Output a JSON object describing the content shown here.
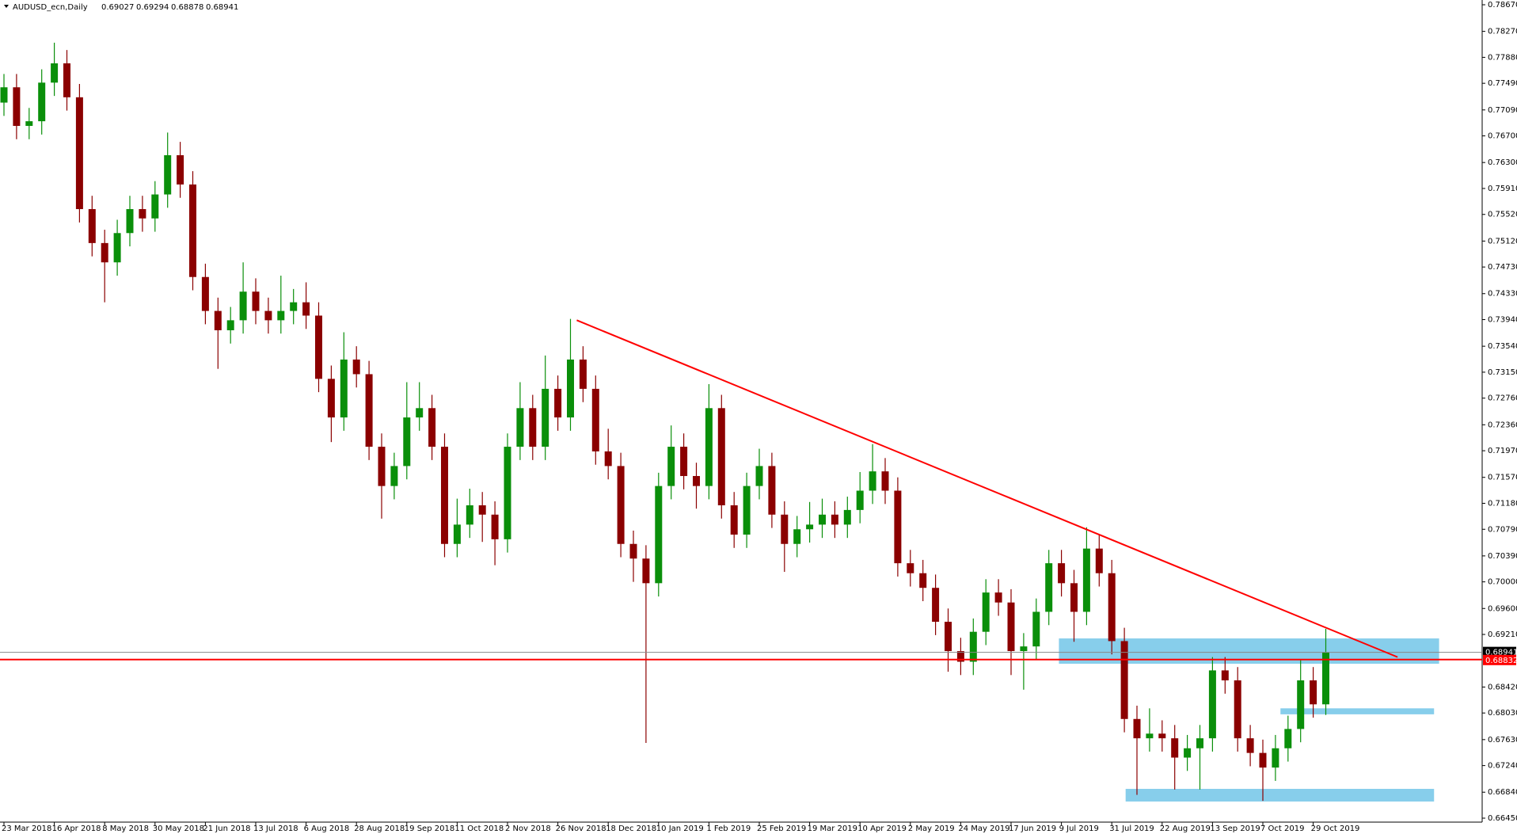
{
  "chart_data": {
    "type": "candlestick",
    "header": {
      "symbol": "AUDUSD_ecn,Daily",
      "ohlc": [
        0.69027,
        0.69294,
        0.68878,
        0.68941
      ]
    },
    "up_color": "#0a8f0a",
    "down_color": "#8b0000",
    "categories": [
      "23 Mar 2018",
      null,
      null,
      null,
      "16 Apr 2018",
      null,
      null,
      null,
      "8 May 2018",
      null,
      null,
      null,
      "30 May 2018",
      null,
      null,
      null,
      "21 Jun 2018",
      null,
      null,
      null,
      "13 Jul 2018",
      null,
      null,
      null,
      "6 Aug 2018",
      null,
      null,
      null,
      "28 Aug 2018",
      null,
      null,
      null,
      "19 Sep 2018",
      null,
      null,
      null,
      "11 Oct 2018",
      null,
      null,
      null,
      "2 Nov 2018",
      null,
      null,
      null,
      "26 Nov 2018",
      null,
      null,
      null,
      "18 Dec 2018",
      null,
      null,
      null,
      "10 Jan 2019",
      null,
      null,
      null,
      "1 Feb 2019",
      null,
      null,
      null,
      "25 Feb 2019",
      null,
      null,
      null,
      "19 Mar 2019",
      null,
      null,
      null,
      "10 Apr 2019",
      null,
      null,
      null,
      "2 May 2019",
      null,
      null,
      null,
      "24 May 2019",
      null,
      null,
      null,
      "17 Jun 2019",
      null,
      null,
      null,
      "9 Jul 2019",
      null,
      null,
      null,
      "31 Jul 2019",
      null,
      null,
      null,
      "22 Aug 2019",
      null,
      null,
      null,
      "13 Sep 2019",
      null,
      null,
      null,
      "7 Oct 2019",
      null,
      null,
      null,
      "29 Oct 2019",
      null
    ],
    "open": [
      0.772,
      0.7743,
      0.7685,
      0.7692,
      0.775,
      0.7779,
      0.7728,
      0.756,
      0.7509,
      0.748,
      0.7524,
      0.756,
      0.7546,
      0.7582,
      0.7641,
      0.7597,
      0.7458,
      0.7407,
      0.7378,
      0.7393,
      0.7436,
      0.7407,
      0.7393,
      0.7407,
      0.742,
      0.74,
      0.7305,
      0.7247,
      0.7334,
      0.7312,
      0.7203,
      0.7144,
      0.7174,
      0.7247,
      0.7261,
      0.7203,
      0.7057,
      0.7086,
      0.7115,
      0.7101,
      0.7064,
      0.7203,
      0.7261,
      0.7203,
      0.729,
      0.7247,
      0.7334,
      0.729,
      0.7196,
      0.7174,
      0.7057,
      0.7035,
      0.6998,
      0.7144,
      0.7203,
      0.7159,
      0.7144,
      0.7261,
      0.7115,
      0.7071,
      0.7144,
      0.7174,
      0.7101,
      0.7057,
      0.7079,
      0.7086,
      0.7101,
      0.7086,
      0.7108,
      0.7137,
      0.7166,
      0.7137,
      0.7028,
      0.7013,
      0.6991,
      0.694,
      0.6896,
      0.688,
      0.6925,
      0.6984,
      0.6969,
      0.6896,
      0.6903,
      0.6955,
      0.7028,
      0.6998,
      0.6955,
      0.705,
      0.7013,
      0.6911,
      0.6794,
      0.6765,
      0.6772,
      0.6765,
      0.6736,
      0.675,
      0.6765,
      0.6867,
      0.6852,
      0.6765,
      0.6743,
      0.6721,
      0.675,
      0.6779,
      0.6852,
      0.6816
    ],
    "high": [
      0.7763,
      0.7763,
      0.7712,
      0.777,
      0.781,
      0.7799,
      0.7748,
      0.758,
      0.7529,
      0.7544,
      0.758,
      0.758,
      0.7602,
      0.7675,
      0.7661,
      0.7617,
      0.7478,
      0.7427,
      0.7413,
      0.748,
      0.7456,
      0.7427,
      0.746,
      0.744,
      0.745,
      0.742,
      0.7325,
      0.7375,
      0.7354,
      0.7332,
      0.7223,
      0.7194,
      0.73,
      0.73,
      0.7281,
      0.7223,
      0.7125,
      0.714,
      0.7135,
      0.7121,
      0.7223,
      0.73,
      0.7281,
      0.734,
      0.731,
      0.7395,
      0.7354,
      0.731,
      0.723,
      0.7194,
      0.7077,
      0.7055,
      0.7164,
      0.7235,
      0.7223,
      0.7179,
      0.7297,
      0.7281,
      0.7135,
      0.7164,
      0.72,
      0.7194,
      0.7121,
      0.7099,
      0.712,
      0.7125,
      0.7121,
      0.7128,
      0.7165,
      0.7207,
      0.7186,
      0.7157,
      0.7048,
      0.7033,
      0.7011,
      0.696,
      0.6916,
      0.6945,
      0.7004,
      0.7004,
      0.6989,
      0.6923,
      0.6975,
      0.7048,
      0.7048,
      0.7018,
      0.7082,
      0.707,
      0.7033,
      0.6931,
      0.6814,
      0.681,
      0.6792,
      0.6785,
      0.677,
      0.6785,
      0.6887,
      0.6887,
      0.6872,
      0.6785,
      0.6763,
      0.677,
      0.6799,
      0.6883,
      0.6872,
      0.69294
    ],
    "low": [
      0.77,
      0.7665,
      0.7665,
      0.7672,
      0.773,
      0.7708,
      0.754,
      0.7489,
      0.742,
      0.746,
      0.7504,
      0.7526,
      0.7526,
      0.7562,
      0.7577,
      0.7438,
      0.7387,
      0.732,
      0.7358,
      0.7373,
      0.7387,
      0.7373,
      0.7373,
      0.7387,
      0.738,
      0.7285,
      0.721,
      0.7227,
      0.7292,
      0.7183,
      0.7095,
      0.7124,
      0.7154,
      0.7227,
      0.7183,
      0.7037,
      0.7037,
      0.7066,
      0.706,
      0.7025,
      0.7044,
      0.7183,
      0.7183,
      0.7183,
      0.7227,
      0.7227,
      0.727,
      0.7176,
      0.7154,
      0.7037,
      0.7,
      0.6758,
      0.6978,
      0.7124,
      0.7139,
      0.711,
      0.7124,
      0.7095,
      0.7051,
      0.7051,
      0.7124,
      0.7081,
      0.7015,
      0.7037,
      0.7059,
      0.7066,
      0.7066,
      0.7066,
      0.7088,
      0.7117,
      0.7117,
      0.7008,
      0.6993,
      0.6971,
      0.692,
      0.6865,
      0.686,
      0.686,
      0.6905,
      0.6949,
      0.686,
      0.6838,
      0.6883,
      0.6935,
      0.6978,
      0.691,
      0.6935,
      0.6993,
      0.6891,
      0.6774,
      0.668,
      0.6745,
      0.6745,
      0.6688,
      0.6716,
      0.6688,
      0.6745,
      0.6832,
      0.6745,
      0.6723,
      0.6671,
      0.6701,
      0.673,
      0.6759,
      0.6796,
      0.68
    ],
    "close": [
      0.7743,
      0.7685,
      0.7692,
      0.775,
      0.7779,
      0.7728,
      0.756,
      0.7509,
      0.748,
      0.7524,
      0.756,
      0.7546,
      0.7582,
      0.7641,
      0.7597,
      0.7458,
      0.7407,
      0.7378,
      0.7393,
      0.7436,
      0.7407,
      0.7393,
      0.7407,
      0.742,
      0.74,
      0.7305,
      0.7247,
      0.7334,
      0.7312,
      0.7203,
      0.7144,
      0.7174,
      0.7247,
      0.7261,
      0.7203,
      0.7057,
      0.7086,
      0.7115,
      0.7101,
      0.7064,
      0.7203,
      0.7261,
      0.7203,
      0.729,
      0.7247,
      0.7334,
      0.729,
      0.7196,
      0.7174,
      0.7057,
      0.7035,
      0.6998,
      0.7144,
      0.7203,
      0.7159,
      0.7144,
      0.7261,
      0.7115,
      0.7071,
      0.7144,
      0.7174,
      0.7101,
      0.7057,
      0.7079,
      0.7086,
      0.7101,
      0.7086,
      0.7108,
      0.7137,
      0.7166,
      0.7137,
      0.7028,
      0.7013,
      0.6991,
      0.694,
      0.6896,
      0.688,
      0.6925,
      0.6984,
      0.6969,
      0.6896,
      0.6903,
      0.6955,
      0.7028,
      0.6998,
      0.6955,
      0.705,
      0.7013,
      0.6911,
      0.6794,
      0.6765,
      0.6772,
      0.6765,
      0.6736,
      0.675,
      0.6765,
      0.6867,
      0.6852,
      0.6765,
      0.6743,
      0.6721,
      0.675,
      0.6779,
      0.6852,
      0.6816,
      0.68941
    ],
    "ylim": [
      0.6645,
      0.7867
    ],
    "yticks": [
      {
        "value": 0.7867,
        "label": "0.78670"
      },
      {
        "value": 0.7827,
        "label": "0.78270"
      },
      {
        "value": 0.7788,
        "label": "0.77880"
      },
      {
        "value": 0.7749,
        "label": "0.77490"
      },
      {
        "value": 0.7709,
        "label": "0.77090"
      },
      {
        "value": 0.767,
        "label": "0.76700"
      },
      {
        "value": 0.763,
        "label": "0.76300"
      },
      {
        "value": 0.7591,
        "label": "0.75910"
      },
      {
        "value": 0.7552,
        "label": "0.75520"
      },
      {
        "value": 0.7512,
        "label": "0.75120"
      },
      {
        "value": 0.7473,
        "label": "0.74730"
      },
      {
        "value": 0.7433,
        "label": "0.74330"
      },
      {
        "value": 0.7394,
        "label": "0.73940"
      },
      {
        "value": 0.7354,
        "label": "0.73540"
      },
      {
        "value": 0.7315,
        "label": "0.73150"
      },
      {
        "value": 0.7276,
        "label": "0.72760"
      },
      {
        "value": 0.7236,
        "label": "0.72360"
      },
      {
        "value": 0.7197,
        "label": "0.71970"
      },
      {
        "value": 0.7157,
        "label": "0.71570"
      },
      {
        "value": 0.7118,
        "label": "0.71180"
      },
      {
        "value": 0.7079,
        "label": "0.70790"
      },
      {
        "value": 0.7039,
        "label": "0.70390"
      },
      {
        "value": 0.7,
        "label": "0.70000"
      },
      {
        "value": 0.696,
        "label": "0.69600"
      },
      {
        "value": 0.6921,
        "label": "0.69210"
      },
      {
        "value": 0.6842,
        "label": "0.68420"
      },
      {
        "value": 0.6803,
        "label": "0.68030"
      },
      {
        "value": 0.6763,
        "label": "0.67630"
      },
      {
        "value": 0.6724,
        "label": "0.67240"
      },
      {
        "value": 0.6684,
        "label": "0.66840"
      },
      {
        "value": 0.6645,
        "label": "0.66450"
      }
    ],
    "current_price": {
      "value": 0.68941,
      "color": "#888888"
    },
    "hline": {
      "value": 0.68832,
      "color": "#ff0000"
    },
    "trendline": {
      "x": [
        45.5,
        110.7
      ],
      "y": [
        0.7393,
        0.6887
      ],
      "color": "#ff0000"
    },
    "zones": [
      {
        "x": [
          83.8,
          114
        ],
        "y": [
          0.6877,
          0.6915
        ],
        "color": "#87ceeb"
      },
      {
        "x": [
          101.4,
          113.6
        ],
        "y": [
          0.6801,
          0.681
        ],
        "color": "#87ceeb"
      },
      {
        "x": [
          89.1,
          113.6
        ],
        "y": [
          0.667,
          0.6689
        ],
        "color": "#87ceeb"
      }
    ]
  }
}
